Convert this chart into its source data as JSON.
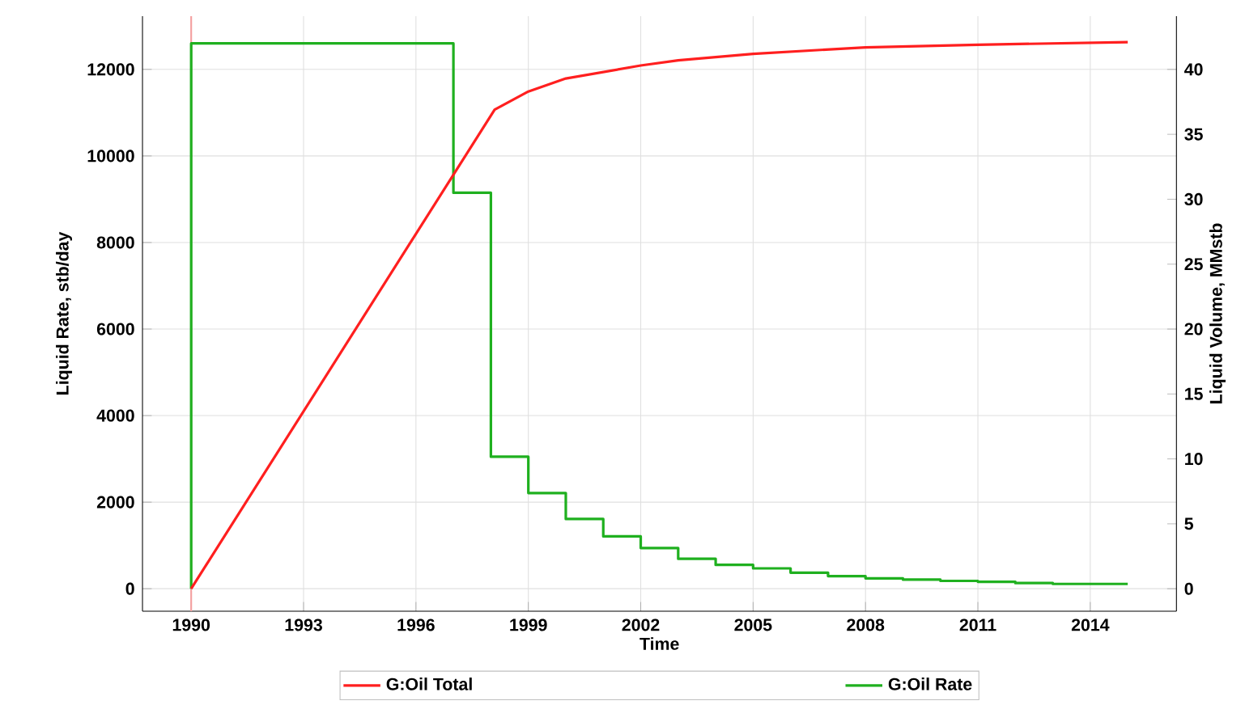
{
  "chart_data": {
    "type": "line",
    "xlabel": "Time",
    "ylabel": "Liquid Rate, stb/day",
    "y2label": "Liquid Volume, MMstb",
    "xlim": [
      1988.7,
      2016.3
    ],
    "ylim": [
      -520,
      13230
    ],
    "y2lim": [
      -1.73,
      44.1
    ],
    "xticks": [
      1990,
      1993,
      1996,
      1999,
      2002,
      2005,
      2008,
      2011,
      2014
    ],
    "yticks": [
      0,
      2000,
      4000,
      6000,
      8000,
      10000,
      12000
    ],
    "y2ticks": [
      0,
      5,
      10,
      15,
      20,
      25,
      30,
      35,
      40
    ],
    "grid": true,
    "legend": "bottom",
    "marker": "none",
    "ref_lines": [
      {
        "axis": "x",
        "value": 1990,
        "color": "#f4a0a0"
      }
    ],
    "series": [
      {
        "name": "G:Oil Total",
        "color": "#ff1f1f",
        "axis": "y2",
        "x": [
          1990,
          1998.1,
          1999,
          2000,
          2001,
          2002,
          2003,
          2005,
          2008,
          2011,
          2015
        ],
        "values": [
          0,
          36.9,
          38.3,
          39.3,
          39.8,
          40.3,
          40.7,
          41.2,
          41.7,
          41.9,
          42.1
        ]
      },
      {
        "name": "G:Oil Rate",
        "color": "#1fb01f",
        "axis": "y",
        "type": "step",
        "x": [
          1990,
          1990,
          1997,
          1998,
          1999,
          2000,
          2001,
          2002,
          2003,
          2004,
          2005,
          2006,
          2007,
          2008,
          2009,
          2010,
          2011,
          2012,
          2013,
          2015
        ],
        "values": [
          0,
          12600,
          9150,
          3050,
          2210,
          1610,
          1210,
          940,
          690,
          550,
          470,
          370,
          290,
          240,
          210,
          180,
          160,
          130,
          110,
          110
        ]
      }
    ]
  }
}
